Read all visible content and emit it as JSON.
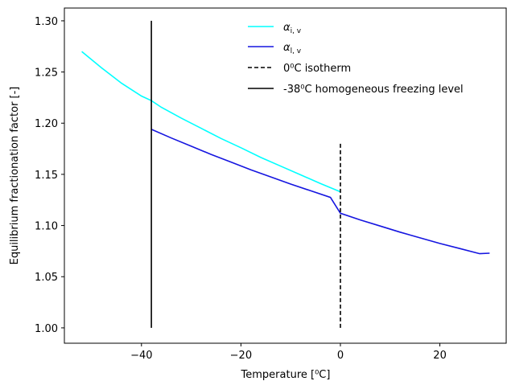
{
  "chart_data": {
    "type": "line",
    "xlabel": "Temperature [⁰C]",
    "ylabel": "Equilibrium fractionation factor [-]",
    "xlim": [
      -55.5,
      33.5
    ],
    "ylim": [
      0.985,
      1.3125
    ],
    "xticks": [
      -40,
      -20,
      0,
      20
    ],
    "xtick_labels": [
      "−40",
      "−20",
      "0",
      "20"
    ],
    "yticks": [
      1.0,
      1.05,
      1.1,
      1.15,
      1.2,
      1.25,
      1.3
    ],
    "ytick_labels": [
      "1.00",
      "1.05",
      "1.10",
      "1.15",
      "1.20",
      "1.25",
      "1.30"
    ],
    "grid": false,
    "legend_position": "top-right",
    "series": [
      {
        "name": "α",
        "subscript": "i, v",
        "color": "#00ffff",
        "style": "solid",
        "x": [
          -52,
          -48,
          -44,
          -40,
          -38,
          -36,
          -32,
          -28,
          -24,
          -20,
          -16,
          -12,
          -8,
          -4,
          0
        ],
        "y": [
          1.27,
          1.254,
          1.239,
          1.2265,
          1.222,
          1.2155,
          1.205,
          1.195,
          1.185,
          1.176,
          1.1665,
          1.158,
          1.1495,
          1.141,
          1.133
        ]
      },
      {
        "name": "α",
        "subscript": "l, v",
        "color": "#1515e0",
        "style": "solid",
        "x": [
          -38,
          -34,
          -30,
          -26,
          -22,
          -18,
          -14,
          -10,
          -6,
          -2,
          0,
          4,
          8,
          12,
          16,
          20,
          24,
          28,
          30
        ],
        "y": [
          1.194,
          1.1855,
          1.1775,
          1.1695,
          1.162,
          1.1545,
          1.1475,
          1.1405,
          1.134,
          1.1275,
          1.112,
          1.1055,
          1.0995,
          1.0935,
          1.088,
          1.0825,
          1.0775,
          1.0725,
          1.073
        ]
      },
      {
        "name": "0⁰C isotherm",
        "color": "#000000",
        "style": "dashed",
        "x": [
          0,
          0
        ],
        "y": [
          1.0,
          1.18
        ]
      },
      {
        "name": "-38⁰C homogeneous freezing level",
        "color": "#000000",
        "style": "solid",
        "x": [
          -38,
          -38
        ],
        "y": [
          1.0,
          1.3
        ]
      }
    ]
  }
}
